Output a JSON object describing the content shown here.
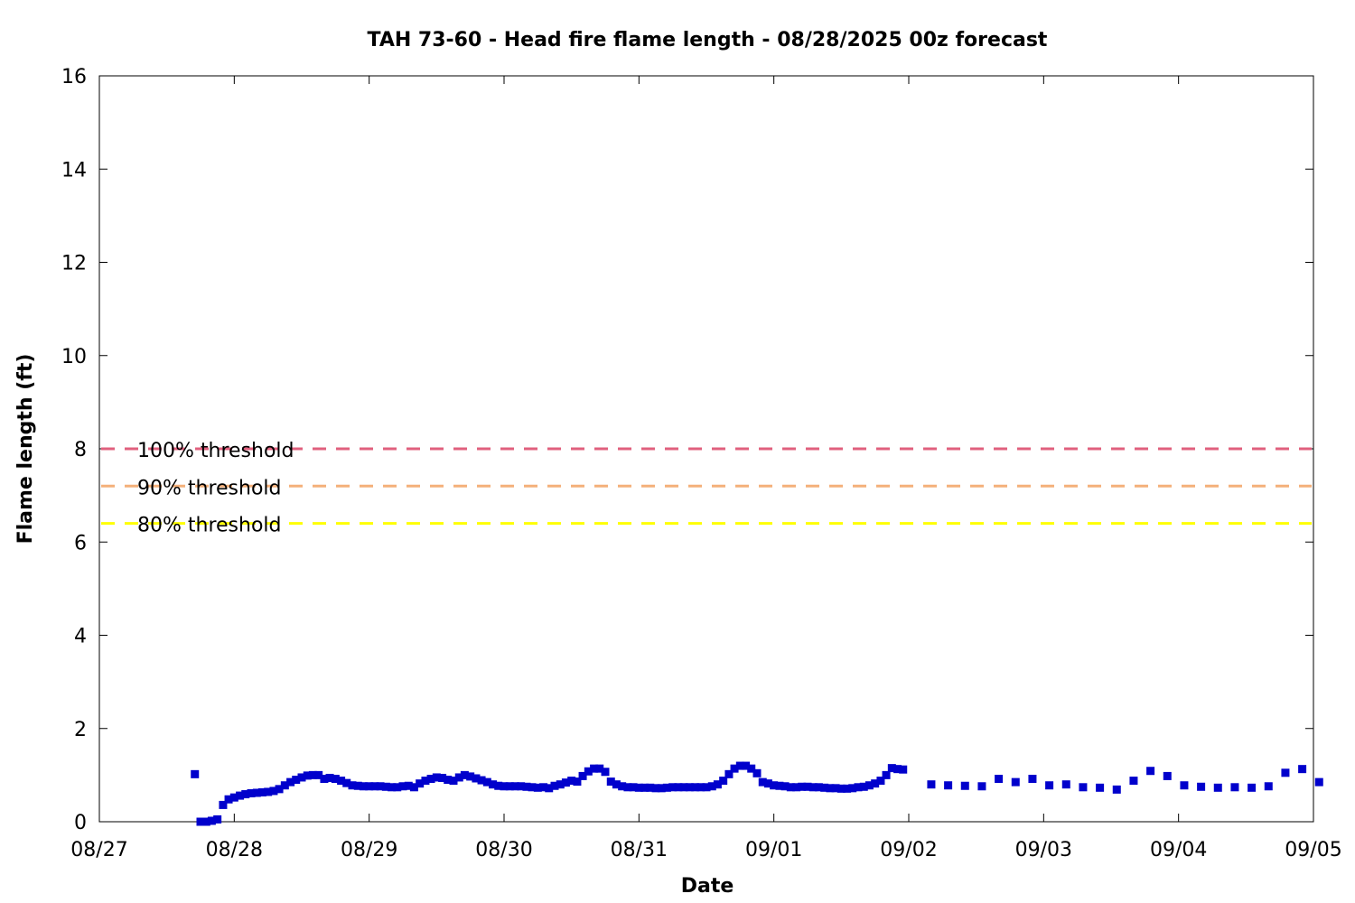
{
  "chart_data": {
    "type": "scatter",
    "title": "TAH 73-60 - Head fire flame length - 08/28/2025 00z forecast",
    "xlabel": "Date",
    "ylabel": "Flame length (ft)",
    "x_ticks": [
      "08/27",
      "08/28",
      "08/29",
      "08/30",
      "08/31",
      "09/01",
      "09/02",
      "09/03",
      "09/04",
      "09/05"
    ],
    "xlim_days": [
      0,
      9
    ],
    "ylim": [
      0,
      16
    ],
    "y_ticks": [
      0,
      2,
      4,
      6,
      8,
      10,
      12,
      14,
      16
    ],
    "grid": false,
    "thresholds": [
      {
        "label": "100% threshold",
        "value": 8.0,
        "color": "#e0607e"
      },
      {
        "label": "90% threshold",
        "value": 7.2,
        "color": "#f4b07a"
      },
      {
        "label": "80% threshold",
        "value": 6.4,
        "color": "#ffff00"
      }
    ],
    "series": [
      {
        "color": "#0000cc",
        "marker": "square",
        "points": [
          [
            0.708,
            1.02
          ],
          [
            0.75,
            0.0
          ],
          [
            0.792,
            0.0
          ],
          [
            0.833,
            0.02
          ],
          [
            0.875,
            0.05
          ],
          [
            0.917,
            0.36
          ],
          [
            0.958,
            0.48
          ],
          [
            1.0,
            0.52
          ],
          [
            1.042,
            0.56
          ],
          [
            1.083,
            0.59
          ],
          [
            1.125,
            0.61
          ],
          [
            1.167,
            0.62
          ],
          [
            1.208,
            0.63
          ],
          [
            1.25,
            0.64
          ],
          [
            1.292,
            0.66
          ],
          [
            1.333,
            0.7
          ],
          [
            1.375,
            0.78
          ],
          [
            1.417,
            0.85
          ],
          [
            1.458,
            0.9
          ],
          [
            1.5,
            0.95
          ],
          [
            1.542,
            0.99
          ],
          [
            1.583,
            1.0
          ],
          [
            1.625,
            1.0
          ],
          [
            1.667,
            0.92
          ],
          [
            1.708,
            0.94
          ],
          [
            1.75,
            0.92
          ],
          [
            1.792,
            0.88
          ],
          [
            1.833,
            0.83
          ],
          [
            1.875,
            0.78
          ],
          [
            1.917,
            0.77
          ],
          [
            1.958,
            0.76
          ],
          [
            2.0,
            0.76
          ],
          [
            2.042,
            0.76
          ],
          [
            2.083,
            0.76
          ],
          [
            2.125,
            0.75
          ],
          [
            2.167,
            0.74
          ],
          [
            2.208,
            0.74
          ],
          [
            2.25,
            0.76
          ],
          [
            2.292,
            0.77
          ],
          [
            2.333,
            0.74
          ],
          [
            2.375,
            0.82
          ],
          [
            2.417,
            0.88
          ],
          [
            2.458,
            0.92
          ],
          [
            2.5,
            0.95
          ],
          [
            2.542,
            0.94
          ],
          [
            2.583,
            0.9
          ],
          [
            2.625,
            0.88
          ],
          [
            2.667,
            0.95
          ],
          [
            2.708,
            1.0
          ],
          [
            2.75,
            0.97
          ],
          [
            2.792,
            0.93
          ],
          [
            2.833,
            0.89
          ],
          [
            2.875,
            0.85
          ],
          [
            2.917,
            0.8
          ],
          [
            2.958,
            0.77
          ],
          [
            3.0,
            0.76
          ],
          [
            3.042,
            0.76
          ],
          [
            3.083,
            0.76
          ],
          [
            3.125,
            0.76
          ],
          [
            3.167,
            0.75
          ],
          [
            3.208,
            0.74
          ],
          [
            3.25,
            0.73
          ],
          [
            3.292,
            0.74
          ],
          [
            3.333,
            0.72
          ],
          [
            3.375,
            0.77
          ],
          [
            3.417,
            0.8
          ],
          [
            3.458,
            0.84
          ],
          [
            3.5,
            0.88
          ],
          [
            3.542,
            0.86
          ],
          [
            3.583,
            0.98
          ],
          [
            3.625,
            1.08
          ],
          [
            3.667,
            1.14
          ],
          [
            3.708,
            1.14
          ],
          [
            3.75,
            1.07
          ],
          [
            3.792,
            0.86
          ],
          [
            3.833,
            0.8
          ],
          [
            3.875,
            0.76
          ],
          [
            3.917,
            0.74
          ],
          [
            3.958,
            0.74
          ],
          [
            4.0,
            0.73
          ],
          [
            4.042,
            0.73
          ],
          [
            4.083,
            0.73
          ],
          [
            4.125,
            0.72
          ],
          [
            4.167,
            0.72
          ],
          [
            4.208,
            0.73
          ],
          [
            4.25,
            0.74
          ],
          [
            4.292,
            0.74
          ],
          [
            4.333,
            0.74
          ],
          [
            4.375,
            0.74
          ],
          [
            4.417,
            0.74
          ],
          [
            4.458,
            0.74
          ],
          [
            4.5,
            0.74
          ],
          [
            4.542,
            0.76
          ],
          [
            4.583,
            0.8
          ],
          [
            4.625,
            0.88
          ],
          [
            4.667,
            1.02
          ],
          [
            4.708,
            1.14
          ],
          [
            4.75,
            1.2
          ],
          [
            4.792,
            1.2
          ],
          [
            4.833,
            1.14
          ],
          [
            4.875,
            1.04
          ],
          [
            4.917,
            0.85
          ],
          [
            4.958,
            0.82
          ],
          [
            5.0,
            0.78
          ],
          [
            5.042,
            0.77
          ],
          [
            5.083,
            0.76
          ],
          [
            5.125,
            0.74
          ],
          [
            5.167,
            0.74
          ],
          [
            5.208,
            0.75
          ],
          [
            5.25,
            0.75
          ],
          [
            5.292,
            0.74
          ],
          [
            5.333,
            0.74
          ],
          [
            5.375,
            0.73
          ],
          [
            5.417,
            0.72
          ],
          [
            5.458,
            0.72
          ],
          [
            5.5,
            0.71
          ],
          [
            5.542,
            0.71
          ],
          [
            5.583,
            0.72
          ],
          [
            5.625,
            0.74
          ],
          [
            5.667,
            0.75
          ],
          [
            5.708,
            0.78
          ],
          [
            5.75,
            0.82
          ],
          [
            5.792,
            0.88
          ],
          [
            5.833,
            1.0
          ],
          [
            5.875,
            1.15
          ],
          [
            5.917,
            1.13
          ],
          [
            5.958,
            1.12
          ],
          [
            6.167,
            0.8
          ],
          [
            6.292,
            0.78
          ],
          [
            6.417,
            0.77
          ],
          [
            6.542,
            0.76
          ],
          [
            6.667,
            0.92
          ],
          [
            6.792,
            0.85
          ],
          [
            6.917,
            0.92
          ],
          [
            7.042,
            0.78
          ],
          [
            7.167,
            0.8
          ],
          [
            7.292,
            0.74
          ],
          [
            7.417,
            0.73
          ],
          [
            7.542,
            0.69
          ],
          [
            7.667,
            0.88
          ],
          [
            7.792,
            1.09
          ],
          [
            7.917,
            0.98
          ],
          [
            8.042,
            0.78
          ],
          [
            8.167,
            0.75
          ],
          [
            8.292,
            0.73
          ],
          [
            8.417,
            0.74
          ],
          [
            8.542,
            0.73
          ],
          [
            8.667,
            0.76
          ],
          [
            8.792,
            1.05
          ],
          [
            8.917,
            1.13
          ],
          [
            9.042,
            0.85
          ]
        ]
      }
    ]
  }
}
